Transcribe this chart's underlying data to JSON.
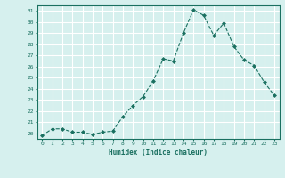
{
  "x": [
    0,
    1,
    2,
    3,
    4,
    5,
    6,
    7,
    8,
    9,
    10,
    11,
    12,
    13,
    14,
    15,
    16,
    17,
    18,
    19,
    20,
    21,
    22,
    23
  ],
  "y": [
    19.8,
    20.4,
    20.4,
    20.1,
    20.1,
    19.9,
    20.1,
    20.2,
    21.5,
    22.5,
    23.3,
    24.7,
    26.7,
    26.5,
    29.0,
    31.1,
    30.6,
    28.8,
    29.9,
    27.8,
    26.6,
    26.1,
    24.6,
    23.4
  ],
  "line_color": "#1a7060",
  "marker": "D",
  "marker_size": 2,
  "bg_color": "#d6f0ee",
  "grid_color": "#ffffff",
  "xlabel": "Humidex (Indice chaleur)",
  "xlim": [
    -0.5,
    23.5
  ],
  "ylim": [
    19.5,
    31.5
  ],
  "yticks": [
    20,
    21,
    22,
    23,
    24,
    25,
    26,
    27,
    28,
    29,
    30,
    31
  ],
  "xticks": [
    0,
    1,
    2,
    3,
    4,
    5,
    6,
    7,
    8,
    9,
    10,
    11,
    12,
    13,
    14,
    15,
    16,
    17,
    18,
    19,
    20,
    21,
    22,
    23
  ],
  "tick_color": "#1a7060",
  "label_color": "#1a7060"
}
